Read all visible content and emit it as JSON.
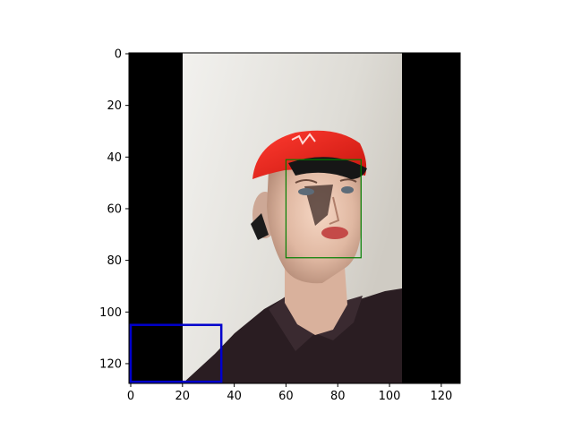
{
  "figure": {
    "x_axis": {
      "range": [
        0,
        128
      ],
      "ticks": [
        0,
        20,
        40,
        60,
        80,
        100,
        120
      ]
    },
    "y_axis": {
      "range": [
        0,
        128
      ],
      "ticks": [
        0,
        20,
        40,
        60,
        80,
        100,
        120
      ],
      "inverted": true
    },
    "image": {
      "subject": "mannequin-wearing-red-cap-and-black-shirt",
      "data_extent": {
        "x": [
          0,
          128
        ],
        "y": [
          0,
          128
        ]
      },
      "left_black_bar_x": [
        0,
        21
      ],
      "right_black_bar_x": [
        105,
        128
      ]
    },
    "annotations": [
      {
        "name": "face-box",
        "color": "#008000",
        "x": [
          60,
          89
        ],
        "y": [
          41,
          79
        ]
      },
      {
        "name": "blue-box",
        "color": "#0000cc",
        "x": [
          0,
          35
        ],
        "y": [
          105,
          127
        ]
      }
    ]
  }
}
